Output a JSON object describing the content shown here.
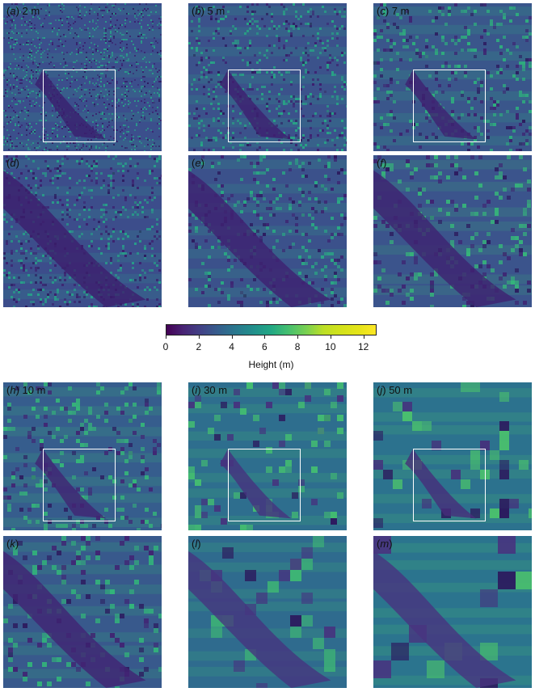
{
  "panels": [
    {
      "id": "a",
      "letter": "a",
      "res": "2 m",
      "kind": "overview",
      "base": "#3b4f8c",
      "speck": "#2aa08a",
      "dark": "#3a1f6e",
      "scale": 2
    },
    {
      "id": "b",
      "letter": "b",
      "res": "5 m",
      "kind": "overview",
      "base": "#3b528b",
      "speck": "#27a885",
      "dark": "#3d1f6f",
      "scale": 3
    },
    {
      "id": "c",
      "letter": "c",
      "res": "7 m",
      "kind": "overview",
      "base": "#3a568b",
      "speck": "#2eb07d",
      "dark": "#3e2170",
      "scale": 4
    },
    {
      "id": "d",
      "letter": "d",
      "res": "",
      "kind": "zoom",
      "base": "#3c4d8b",
      "speck": "#27a389",
      "dark": "#3c1e6d",
      "scale": 3
    },
    {
      "id": "e",
      "letter": "e",
      "res": "",
      "kind": "zoom",
      "base": "#3b518b",
      "speck": "#2aac83",
      "dark": "#3e2070",
      "scale": 4
    },
    {
      "id": "f",
      "letter": "f",
      "res": "",
      "kind": "zoom",
      "base": "#3b548c",
      "speck": "#36b57a",
      "dark": "#3f2271",
      "scale": 5
    },
    {
      "id": "h",
      "letter": "h",
      "res": "10 m",
      "kind": "overview",
      "base": "#365d8d",
      "speck": "#35b779",
      "dark": "#412473",
      "scale": 5
    },
    {
      "id": "i",
      "letter": "i",
      "res": "30 m",
      "kind": "overview",
      "base": "#2e6e8e",
      "speck": "#44bf70",
      "dark": "#46327e",
      "scale": 8
    },
    {
      "id": "j",
      "letter": "j",
      "res": "50 m",
      "kind": "overview",
      "base": "#2c728e",
      "speck": "#4ac16d",
      "dark": "#472d7b",
      "scale": 12
    },
    {
      "id": "k",
      "letter": "k",
      "res": "",
      "kind": "zoom",
      "base": "#38598c",
      "speck": "#32b67a",
      "dark": "#412373",
      "scale": 6
    },
    {
      "id": "l",
      "letter": "l",
      "res": "",
      "kind": "zoom",
      "base": "#2f6b8e",
      "speck": "#3fbc73",
      "dark": "#463480",
      "scale": 14
    },
    {
      "id": "m",
      "letter": "m",
      "res": "",
      "kind": "zoom",
      "base": "#2b748e",
      "speck": "#4ac16d",
      "dark": "#48337f",
      "scale": 22
    }
  ],
  "colorbar": {
    "label": "Height (m)",
    "colormap": "viridis",
    "range": [
      0,
      12.8
    ],
    "ticks": [
      "0",
      "2",
      "4",
      "6",
      "8",
      "10",
      "12"
    ]
  }
}
